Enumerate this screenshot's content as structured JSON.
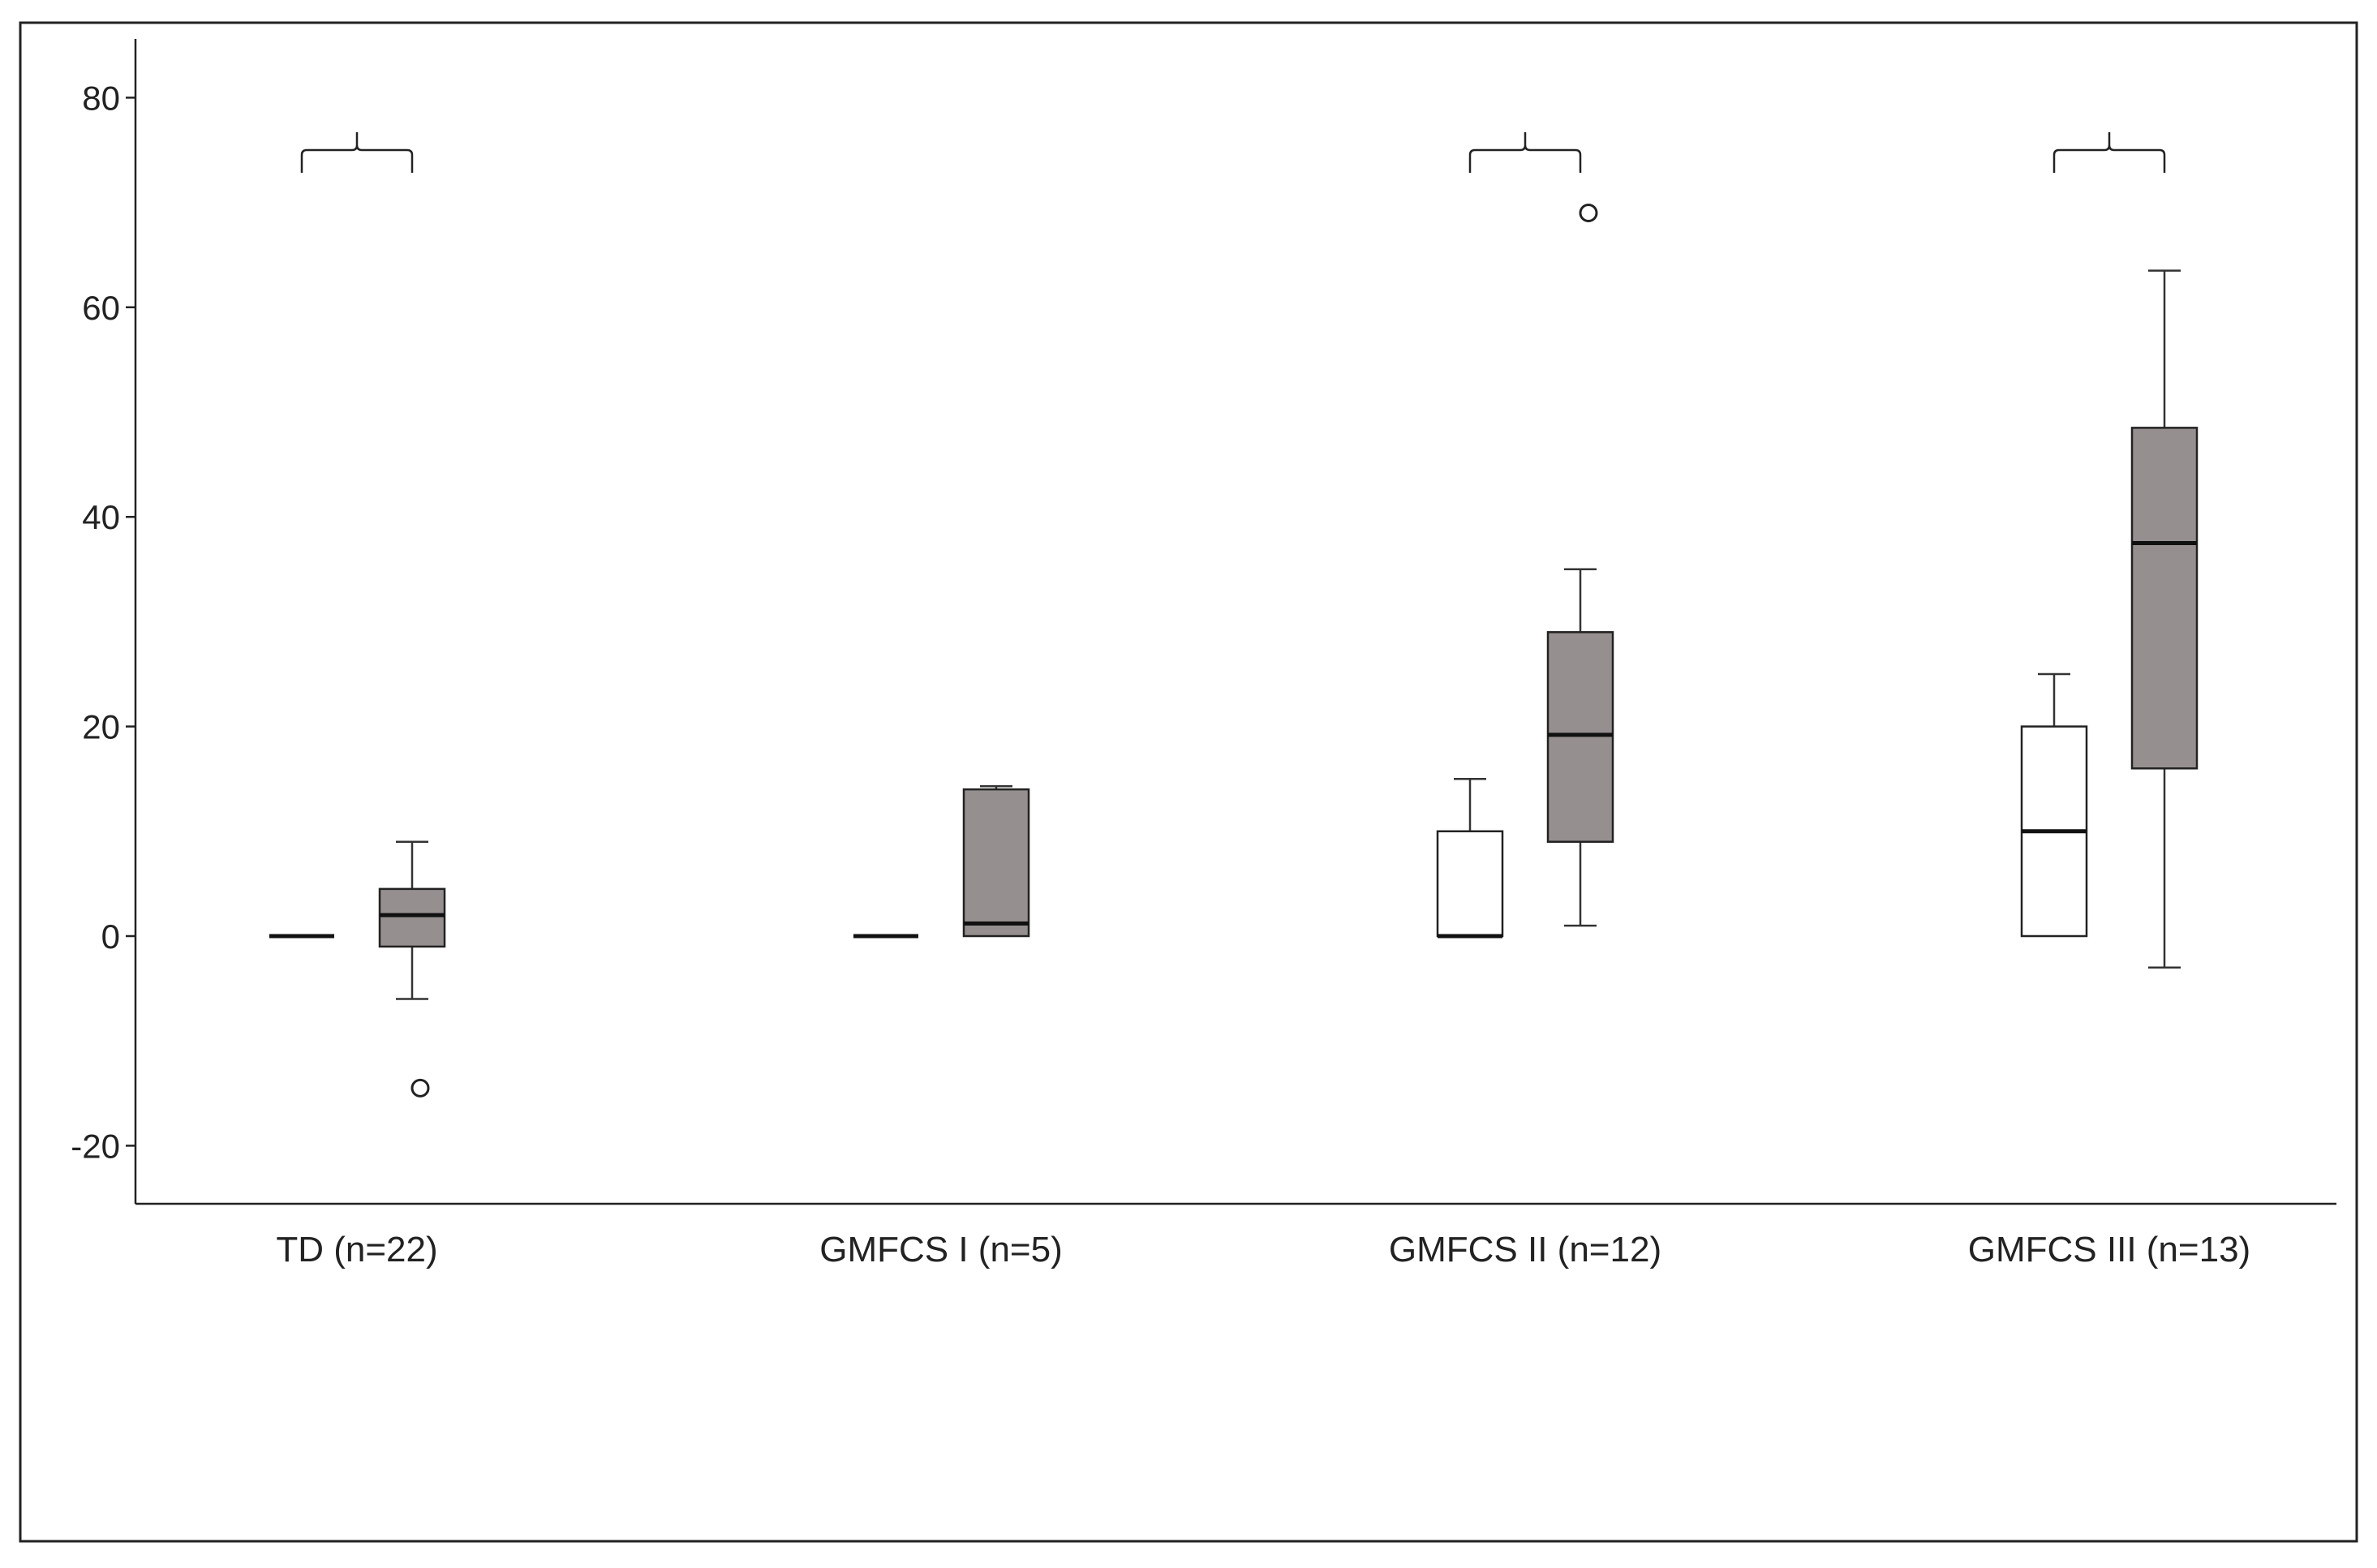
{
  "chart_data": {
    "type": "boxplot",
    "title": "",
    "xlabel": "",
    "ylabel": "",
    "ylim": [
      -25,
      86
    ],
    "yticks": [
      -20,
      0,
      20,
      40,
      60,
      80
    ],
    "ytick_labels": [
      "-20",
      "0",
      "20",
      "40",
      "60",
      "80"
    ],
    "grid": false,
    "legend": "none",
    "categories": [
      "TD (n=22)",
      "GMFCS I (n=5)",
      "GMFCS II (n=12)",
      "GMFCS III (n=13)"
    ],
    "series": [
      {
        "fill": "#ffffff",
        "boxes": [
          {
            "category": "TD (n=22)",
            "min": 0,
            "q1": 0,
            "median": 0,
            "q3": 0,
            "max": 0,
            "outliers": []
          },
          {
            "category": "GMFCS I (n=5)",
            "min": 0,
            "q1": 0,
            "median": 0,
            "q3": 0,
            "max": 0,
            "outliers": []
          },
          {
            "category": "GMFCS II (n=12)",
            "min": 0,
            "q1": 0,
            "median": 0,
            "q3": 10,
            "max": 15,
            "outliers": []
          },
          {
            "category": "GMFCS III (n=13)",
            "min": 0,
            "q1": 0,
            "median": 10,
            "q3": 20,
            "max": 25,
            "outliers": []
          }
        ]
      },
      {
        "fill": "#968f8f",
        "boxes": [
          {
            "category": "TD (n=22)",
            "min": -6,
            "q1": -1,
            "median": 2,
            "q3": 4.5,
            "max": 9,
            "outliers": [
              -14.5
            ]
          },
          {
            "category": "GMFCS I (n=5)",
            "min": 0,
            "q1": 0,
            "median": 1.2,
            "q3": 14,
            "max": 14.3,
            "outliers": []
          },
          {
            "category": "GMFCS II (n=12)",
            "min": 1,
            "q1": 9,
            "median": 19.2,
            "q3": 29,
            "max": 35,
            "outliers": [
              69
            ]
          },
          {
            "category": "GMFCS III (n=13)",
            "min": -3,
            "q1": 16,
            "median": 37.5,
            "q3": 48.5,
            "max": 63.5,
            "outliers": []
          }
        ]
      }
    ],
    "significance_brackets": [
      {
        "category": "TD (n=22)",
        "y": 75
      },
      {
        "category": "GMFCS II (n=12)",
        "y": 75
      },
      {
        "category": "GMFCS III (n=13)",
        "y": 75
      }
    ]
  }
}
